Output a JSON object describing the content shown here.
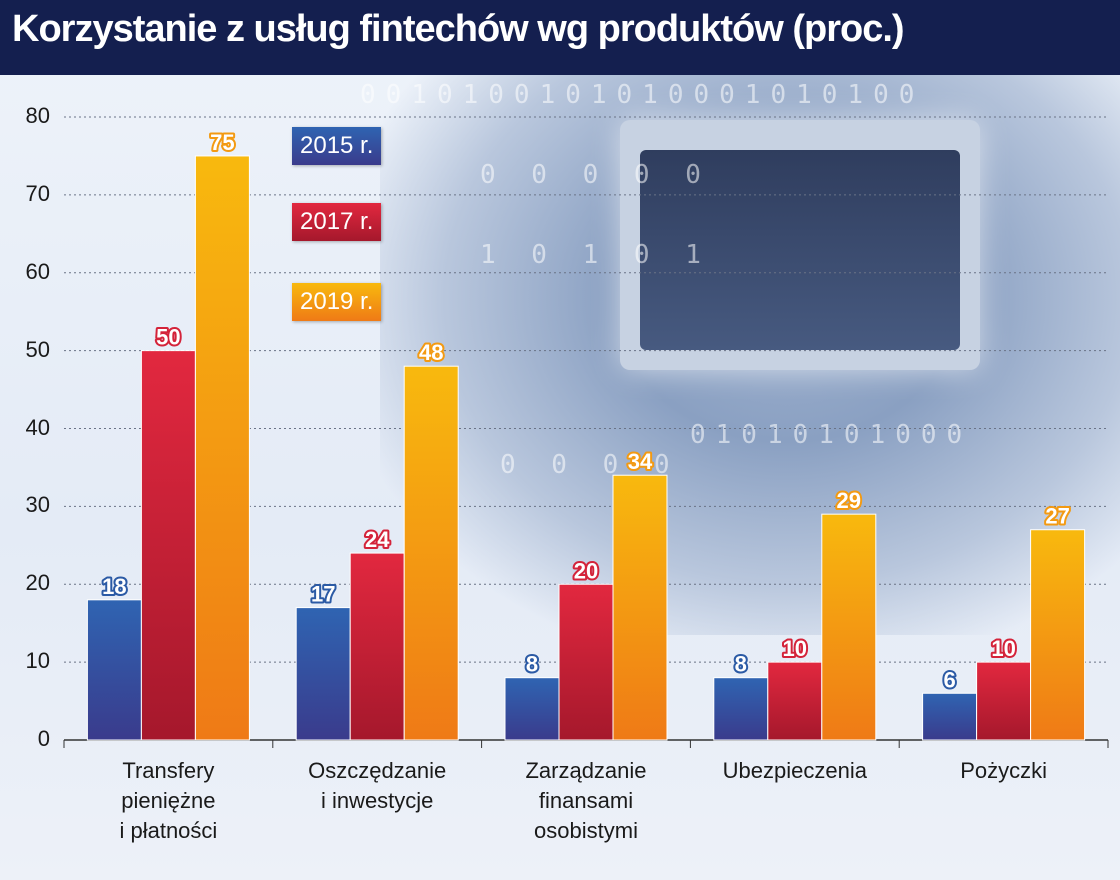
{
  "title": "Korzystanie z usług fintechów wg produktów (proc.)",
  "chart_data": {
    "type": "bar",
    "title": "Korzystanie z usług fintechów wg produktów (proc.)",
    "categories": [
      "Transfery pieniężne i płatności",
      "Oszczędzanie i inwestycje",
      "Zarządzanie finansami osobistymi",
      "Ubezpieczenia",
      "Pożyczki"
    ],
    "category_lines": [
      [
        "Transfery",
        "pieniężne",
        "i płatności"
      ],
      [
        "Oszczędzanie",
        "i inwestycje"
      ],
      [
        "Zarządzanie",
        "finansami",
        "osobistymi"
      ],
      [
        "Ubezpieczenia"
      ],
      [
        "Pożyczki"
      ]
    ],
    "series": [
      {
        "name": "2015 r.",
        "values": [
          18,
          17,
          8,
          8,
          6
        ],
        "color": "#2b5aa5"
      },
      {
        "name": "2017 r.",
        "values": [
          50,
          24,
          20,
          10,
          10
        ],
        "color": "#d4233a"
      },
      {
        "name": "2019 r.",
        "values": [
          75,
          48,
          34,
          29,
          27
        ],
        "color": "#f39a12"
      }
    ],
    "ylim": [
      0,
      80
    ],
    "yticks": [
      0,
      10,
      20,
      30,
      40,
      50,
      60,
      70,
      80
    ],
    "xlabel": "",
    "ylabel": "",
    "grid": true,
    "legend": "top-left"
  }
}
